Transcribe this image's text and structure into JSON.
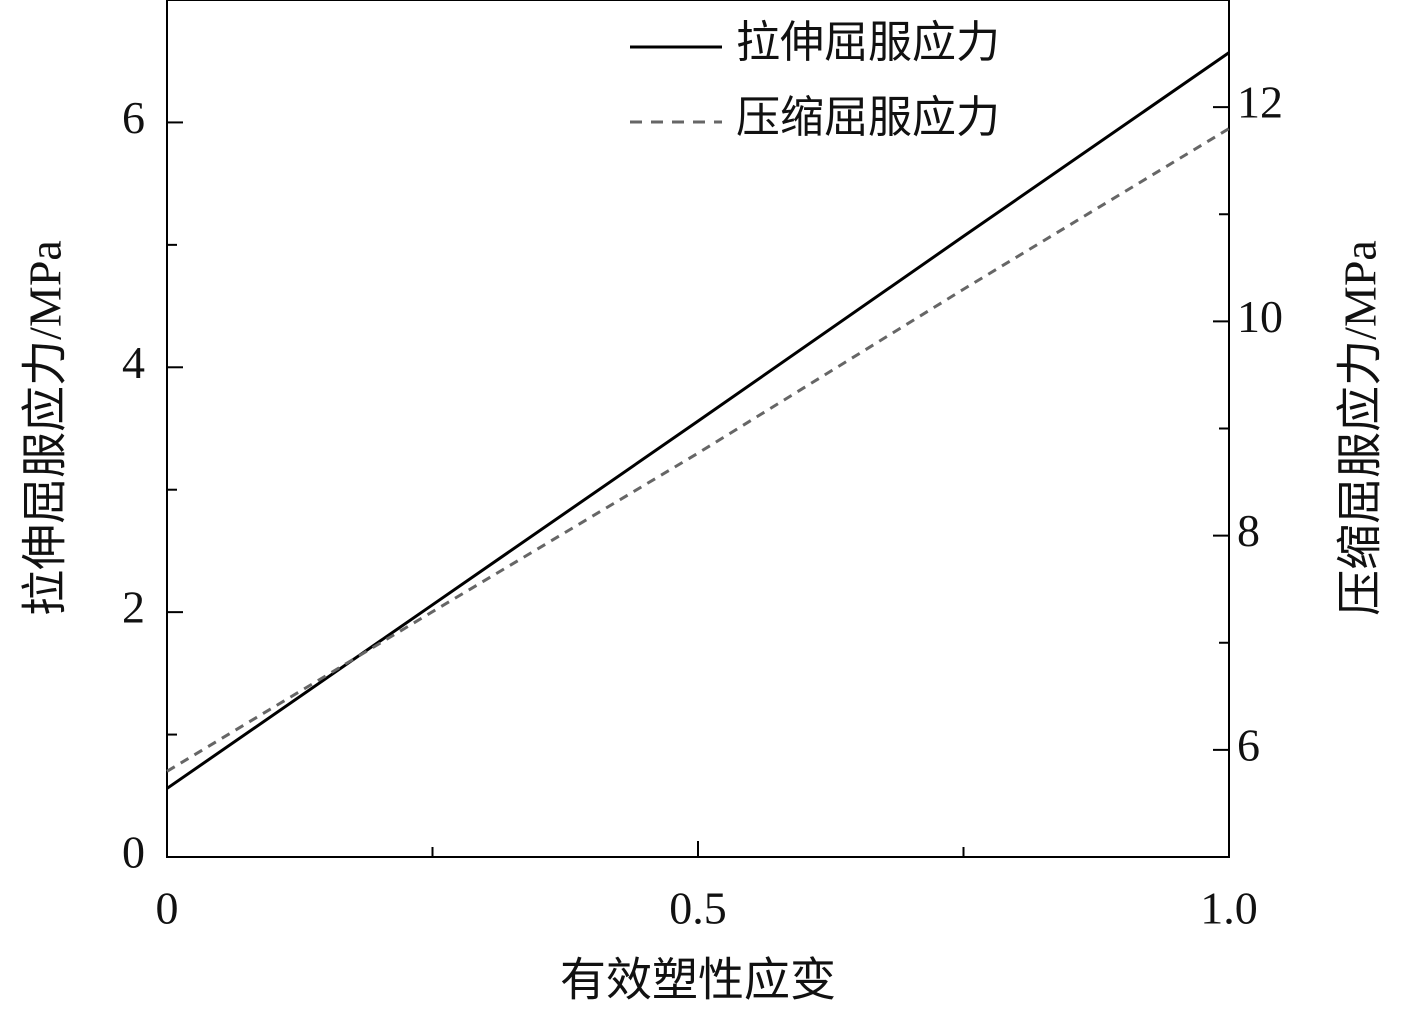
{
  "chart_data": {
    "type": "line",
    "x_label": "有效塑性应变",
    "y_label": "拉伸屈服应力/MPa",
    "y2_label": "压缩屈服应力/MPa",
    "x": [
      0,
      0.25,
      0.5,
      0.75,
      1
    ],
    "series": [
      {
        "name": "拉伸屈服应力",
        "color": "#000000",
        "dash": "solid",
        "values": [
          0.56,
          2.06,
          3.56,
          5.07,
          6.57
        ]
      },
      {
        "name": "压缩屈服应力",
        "color": "#666666",
        "dash": "dashed",
        "axis": "y2",
        "values": [
          5.8,
          7.29,
          8.77,
          10.3,
          11.8
        ]
      }
    ],
    "xlim": [
      0,
      1
    ],
    "xticks": [
      0,
      0.5,
      {
        "value": 1,
        "label": "1.0"
      }
    ],
    "xminor_ticks": [
      0.25,
      0.75
    ],
    "ylim": [
      0,
      7
    ],
    "yticks": [
      0,
      2,
      4,
      6
    ],
    "yminor_ticks": [
      1,
      3,
      5
    ],
    "y2lim": [
      5,
      13
    ],
    "y2ticks": [
      6,
      8,
      10,
      12
    ],
    "y2minor_ticks": [
      7,
      9,
      11
    ],
    "grid": false,
    "legend": "upper right"
  }
}
